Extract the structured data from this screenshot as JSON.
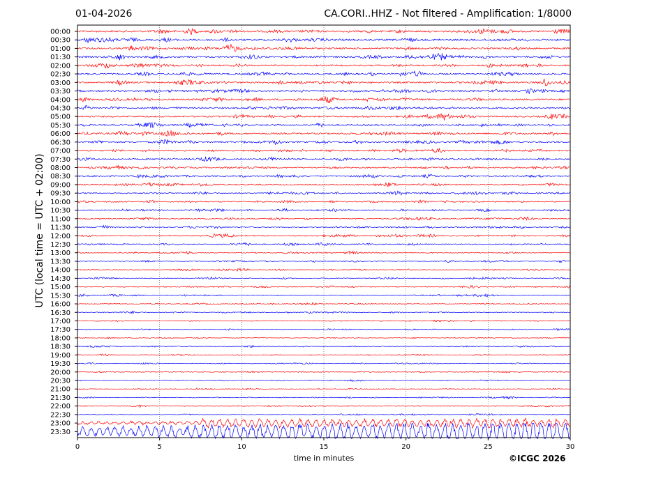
{
  "header": {
    "date": "01-04-2026",
    "title": "CA.CORI..HHZ - Not filtered - Amplification: 1/8000"
  },
  "axis": {
    "ylabel": "UTC (local time = UTC + 02:00)",
    "xlabel": "time in minutes"
  },
  "copyright": "©ICGC 2026",
  "colors": {
    "even_trace": "#ff0000",
    "odd_trace": "#0000ff"
  },
  "chart_data": {
    "type": "line",
    "description_type": "helicorder",
    "x_range": [
      0,
      30
    ],
    "x_ticks": [
      0,
      5,
      10,
      15,
      20,
      25,
      30
    ],
    "x_unit": "minutes",
    "row_labels": [
      "00:00",
      "00:30",
      "01:00",
      "01:30",
      "02:00",
      "02:30",
      "03:00",
      "03:30",
      "04:00",
      "04:30",
      "05:00",
      "05:30",
      "06:00",
      "06:30",
      "07:00",
      "07:30",
      "08:00",
      "08:30",
      "09:00",
      "09:30",
      "10:00",
      "10:30",
      "11:00",
      "11:30",
      "12:00",
      "12:30",
      "13:00",
      "13:30",
      "14:00",
      "14:30",
      "15:00",
      "15:30",
      "16:00",
      "16:30",
      "17:00",
      "17:30",
      "18:00",
      "18:30",
      "19:00",
      "19:30",
      "20:00",
      "20:30",
      "21:00",
      "21:30",
      "22:00",
      "22:30",
      "23:00",
      "23:30"
    ],
    "row_amplitude": [
      0.9,
      0.9,
      0.85,
      0.85,
      0.8,
      0.8,
      0.85,
      0.85,
      0.8,
      0.8,
      0.75,
      0.75,
      0.8,
      0.75,
      0.7,
      0.7,
      0.65,
      0.65,
      0.6,
      0.6,
      0.55,
      0.55,
      0.5,
      0.5,
      0.55,
      0.5,
      0.45,
      0.4,
      0.4,
      0.4,
      0.4,
      0.4,
      0.35,
      0.35,
      0.3,
      0.3,
      0.3,
      0.3,
      0.3,
      0.3,
      0.3,
      0.3,
      0.3,
      0.3,
      0.3,
      0.3,
      1.6,
      3.5
    ],
    "grid": true
  }
}
